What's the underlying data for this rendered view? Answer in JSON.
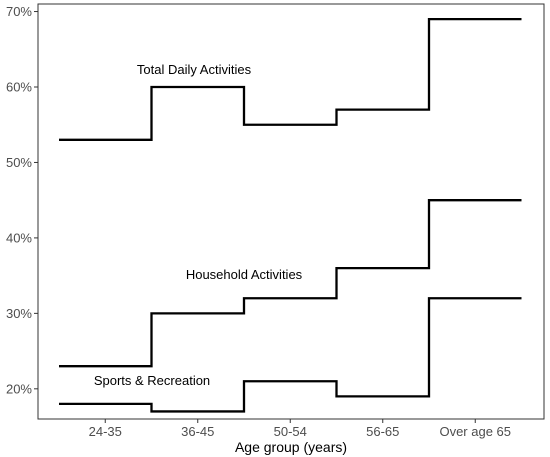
{
  "chart_data": {
    "type": "line",
    "step": true,
    "categories": [
      "24-35",
      "36-45",
      "50-54",
      "56-65",
      "Over age 65"
    ],
    "series": [
      {
        "annotation": "Total Daily Activities",
        "values": [
          53,
          60,
          55,
          57,
          69
        ]
      },
      {
        "annotation": "Household Activities",
        "values": [
          23,
          30,
          32,
          36,
          45
        ]
      },
      {
        "annotation": "Sports & Recreation",
        "values": [
          18,
          17,
          21,
          19,
          32
        ]
      }
    ],
    "title": "",
    "xlabel": "Age group (years)",
    "ylabel": "",
    "ylim": [
      16,
      71
    ],
    "yticks": [
      20,
      30,
      40,
      50,
      60,
      70
    ],
    "ytick_labels": [
      "20%",
      "30%",
      "40%",
      "50%",
      "60%",
      "70%"
    ],
    "grid": false,
    "legend": "none",
    "line_color": "#000000"
  }
}
